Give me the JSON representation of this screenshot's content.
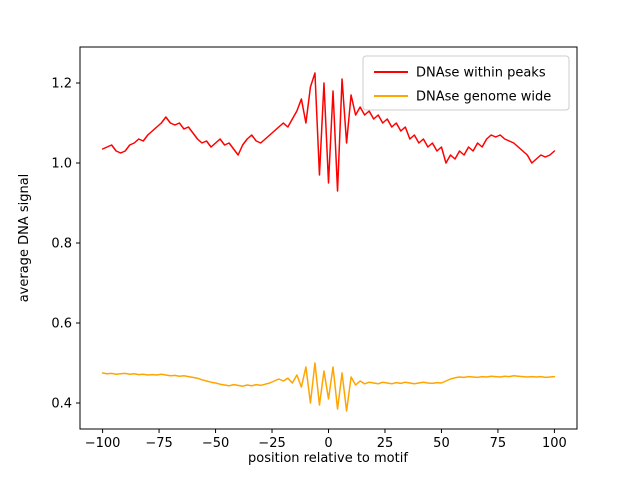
{
  "chart_data": {
    "type": "line",
    "title": "",
    "xlabel": "position relative to motif",
    "ylabel": "average DNA signal",
    "xlim": [
      -110,
      110
    ],
    "ylim": [
      0.335,
      1.29
    ],
    "x_ticks": [
      -100,
      -75,
      -50,
      -25,
      0,
      25,
      50,
      75,
      100
    ],
    "y_ticks": [
      0.4,
      0.6,
      0.8,
      1.0,
      1.2
    ],
    "grid": false,
    "legend_position": "upper right",
    "background_color": "#ffffff",
    "spine_color": "#000000",
    "legend_edge_color": "#cccccc",
    "x": [
      -100,
      -98,
      -96,
      -94,
      -92,
      -90,
      -88,
      -86,
      -84,
      -82,
      -80,
      -78,
      -76,
      -74,
      -72,
      -70,
      -68,
      -66,
      -64,
      -62,
      -60,
      -58,
      -56,
      -54,
      -52,
      -50,
      -48,
      -46,
      -44,
      -42,
      -40,
      -38,
      -36,
      -34,
      -32,
      -30,
      -28,
      -26,
      -24,
      -22,
      -20,
      -18,
      -16,
      -14,
      -12,
      -10,
      -8,
      -6,
      -4,
      -2,
      0,
      2,
      4,
      6,
      8,
      10,
      12,
      14,
      16,
      18,
      20,
      22,
      24,
      26,
      28,
      30,
      32,
      34,
      36,
      38,
      40,
      42,
      44,
      46,
      48,
      50,
      52,
      54,
      56,
      58,
      60,
      62,
      64,
      66,
      68,
      70,
      72,
      74,
      76,
      78,
      80,
      82,
      84,
      86,
      88,
      90,
      92,
      94,
      96,
      98,
      100
    ],
    "series": [
      {
        "name": "DNAse within peaks",
        "color": "#ff0000",
        "values": [
          1.035,
          1.04,
          1.045,
          1.03,
          1.025,
          1.03,
          1.045,
          1.05,
          1.06,
          1.055,
          1.07,
          1.08,
          1.09,
          1.1,
          1.115,
          1.1,
          1.095,
          1.1,
          1.085,
          1.09,
          1.075,
          1.06,
          1.05,
          1.055,
          1.04,
          1.05,
          1.06,
          1.045,
          1.05,
          1.035,
          1.02,
          1.045,
          1.06,
          1.07,
          1.055,
          1.05,
          1.06,
          1.07,
          1.08,
          1.09,
          1.1,
          1.09,
          1.11,
          1.13,
          1.16,
          1.1,
          1.19,
          1.225,
          0.97,
          1.2,
          0.95,
          1.18,
          0.93,
          1.21,
          1.05,
          1.17,
          1.12,
          1.14,
          1.12,
          1.13,
          1.11,
          1.12,
          1.1,
          1.11,
          1.09,
          1.1,
          1.08,
          1.09,
          1.06,
          1.07,
          1.05,
          1.06,
          1.04,
          1.05,
          1.03,
          1.04,
          1.0,
          1.02,
          1.01,
          1.03,
          1.02,
          1.04,
          1.03,
          1.05,
          1.04,
          1.06,
          1.07,
          1.065,
          1.07,
          1.06,
          1.055,
          1.05,
          1.04,
          1.03,
          1.02,
          1.0,
          1.01,
          1.02,
          1.015,
          1.02,
          1.03
        ]
      },
      {
        "name": "DNAse genome wide",
        "color": "#ffa500",
        "values": [
          0.475,
          0.473,
          0.474,
          0.472,
          0.473,
          0.474,
          0.472,
          0.473,
          0.471,
          0.472,
          0.47,
          0.471,
          0.47,
          0.472,
          0.47,
          0.468,
          0.469,
          0.467,
          0.468,
          0.466,
          0.464,
          0.462,
          0.458,
          0.455,
          0.452,
          0.45,
          0.447,
          0.445,
          0.443,
          0.446,
          0.444,
          0.442,
          0.445,
          0.443,
          0.446,
          0.444,
          0.447,
          0.45,
          0.455,
          0.46,
          0.455,
          0.462,
          0.45,
          0.47,
          0.44,
          0.49,
          0.4,
          0.5,
          0.395,
          0.48,
          0.41,
          0.49,
          0.385,
          0.475,
          0.38,
          0.465,
          0.445,
          0.455,
          0.448,
          0.452,
          0.45,
          0.448,
          0.452,
          0.45,
          0.448,
          0.451,
          0.449,
          0.452,
          0.45,
          0.448,
          0.45,
          0.452,
          0.45,
          0.449,
          0.451,
          0.45,
          0.455,
          0.46,
          0.463,
          0.465,
          0.464,
          0.466,
          0.465,
          0.464,
          0.466,
          0.465,
          0.467,
          0.466,
          0.465,
          0.467,
          0.466,
          0.468,
          0.467,
          0.466,
          0.465,
          0.466,
          0.465,
          0.466,
          0.464,
          0.465,
          0.466
        ]
      }
    ]
  }
}
